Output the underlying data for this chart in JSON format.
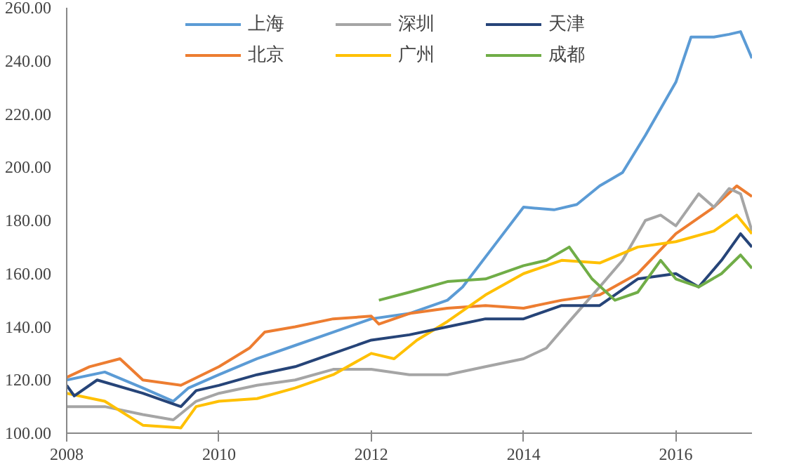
{
  "chart_data": {
    "type": "line",
    "xlim": [
      2008,
      2017
    ],
    "xticks": [
      2008,
      2010,
      2012,
      2014,
      2016
    ],
    "ylim": [
      100,
      260
    ],
    "yticks": [
      {
        "value": 100,
        "label": "100.00"
      },
      {
        "value": 120,
        "label": "120.00"
      },
      {
        "value": 140,
        "label": "140.00"
      },
      {
        "value": 160,
        "label": "160.00"
      },
      {
        "value": 180,
        "label": "180.00"
      },
      {
        "value": 200,
        "label": "200.00"
      },
      {
        "value": 220,
        "label": "220.00"
      },
      {
        "value": 240,
        "label": "240.00"
      },
      {
        "value": 260,
        "label": "260.00"
      }
    ],
    "grid": false,
    "legend": "top",
    "marker": "none",
    "line_style": "solid",
    "series": [
      {
        "name": "上海",
        "color": "#5b9bd5",
        "x": [
          2008,
          2008.5,
          2009,
          2009.4,
          2009.6,
          2010,
          2010.5,
          2011,
          2011.5,
          2012,
          2012.5,
          2013,
          2013.2,
          2013.6,
          2014,
          2014.4,
          2014.7,
          2015,
          2015.3,
          2015.6,
          2016,
          2016.2,
          2016.5,
          2016.7,
          2016.85,
          2017
        ],
        "values": [
          120,
          123,
          117,
          112,
          117,
          122,
          128,
          133,
          138,
          143,
          145,
          150,
          155,
          170,
          185,
          184,
          186,
          193,
          198,
          212,
          232,
          249,
          249,
          250,
          251,
          241
        ]
      },
      {
        "name": "北京",
        "color": "#ed7d31",
        "x": [
          2008,
          2008.3,
          2008.7,
          2009,
          2009.5,
          2010,
          2010.4,
          2010.6,
          2011,
          2011.5,
          2012,
          2012.1,
          2012.5,
          2013,
          2013.5,
          2014,
          2014.5,
          2015,
          2015.5,
          2016,
          2016.5,
          2016.8,
          2017
        ],
        "values": [
          121,
          125,
          128,
          120,
          118,
          125,
          132,
          138,
          140,
          143,
          144,
          141,
          145,
          147,
          148,
          147,
          150,
          152,
          160,
          175,
          185,
          193,
          189
        ]
      },
      {
        "name": "深圳",
        "color": "#a5a5a5",
        "x": [
          2008,
          2008.5,
          2009,
          2009.4,
          2009.7,
          2010,
          2010.5,
          2011,
          2011.5,
          2012,
          2012.5,
          2013,
          2013.5,
          2014,
          2014.3,
          2014.6,
          2015,
          2015.3,
          2015.6,
          2015.8,
          2016,
          2016.3,
          2016.5,
          2016.7,
          2016.85,
          2017
        ],
        "values": [
          110,
          110,
          107,
          105,
          112,
          115,
          118,
          120,
          124,
          124,
          122,
          122,
          125,
          128,
          132,
          142,
          155,
          165,
          180,
          182,
          178,
          190,
          185,
          192,
          190,
          176
        ]
      },
      {
        "name": "广州",
        "color": "#ffc000",
        "x": [
          2008,
          2008.5,
          2009,
          2009.5,
          2009.7,
          2010,
          2010.5,
          2011,
          2011.5,
          2012,
          2012.3,
          2012.6,
          2013,
          2013.5,
          2014,
          2014.5,
          2015,
          2015.5,
          2016,
          2016.5,
          2016.8,
          2017
        ],
        "values": [
          115,
          112,
          103,
          102,
          110,
          112,
          113,
          117,
          122,
          130,
          128,
          135,
          142,
          152,
          160,
          165,
          164,
          170,
          172,
          176,
          182,
          175
        ]
      },
      {
        "name": "天津",
        "color": "#264478",
        "x": [
          2008,
          2008.1,
          2008.4,
          2009,
          2009.5,
          2009.7,
          2010,
          2010.5,
          2011,
          2011.5,
          2012,
          2012.5,
          2013,
          2013.5,
          2014,
          2014.5,
          2015,
          2015.5,
          2016,
          2016.3,
          2016.6,
          2016.85,
          2017
        ],
        "values": [
          118,
          114,
          120,
          115,
          110,
          116,
          118,
          122,
          125,
          130,
          135,
          137,
          140,
          143,
          143,
          148,
          148,
          158,
          160,
          155,
          165,
          175,
          170
        ]
      },
      {
        "name": "成都",
        "color": "#70ad47",
        "x": [
          2012.1,
          2012.5,
          2013,
          2013.5,
          2014,
          2014.3,
          2014.6,
          2014.9,
          2015.2,
          2015.5,
          2015.8,
          2016,
          2016.3,
          2016.6,
          2016.85,
          2017
        ],
        "values": [
          150,
          153,
          157,
          158,
          163,
          165,
          170,
          158,
          150,
          153,
          165,
          158,
          155,
          160,
          167,
          162
        ]
      }
    ]
  }
}
